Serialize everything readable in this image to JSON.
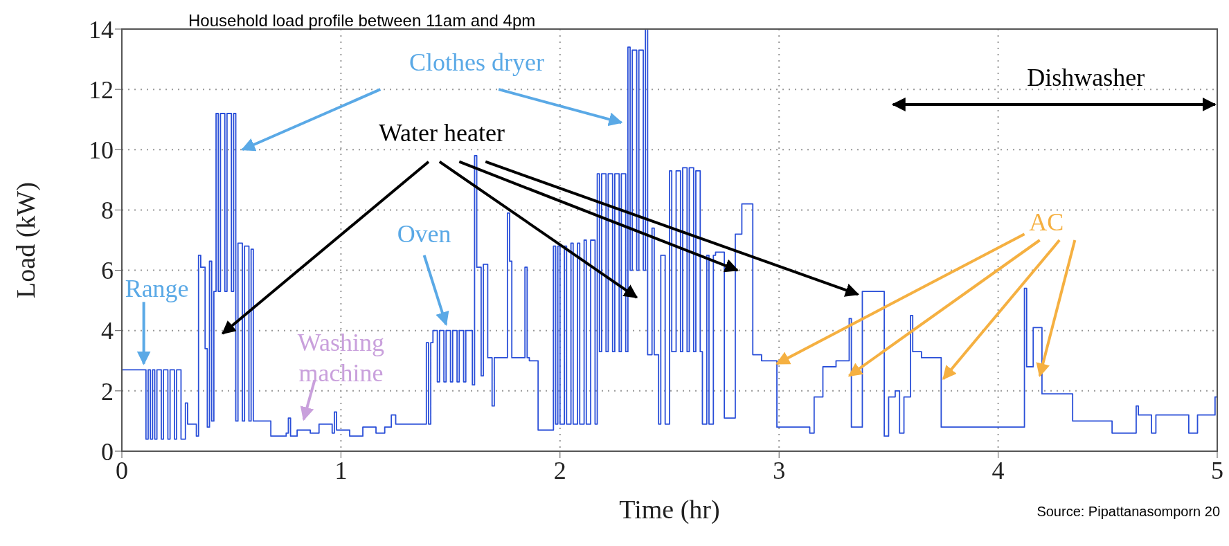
{
  "chart_data": {
    "type": "step",
    "title": "Household load profile between 11am and 4pm",
    "xlabel": "Time (hr)",
    "ylabel": "Load (kW)",
    "x": [
      0,
      0.11,
      0.12,
      0.13,
      0.14,
      0.15,
      0.16,
      0.18,
      0.19,
      0.21,
      0.22,
      0.24,
      0.25,
      0.27,
      0.29,
      0.3,
      0.34,
      0.35,
      0.36,
      0.38,
      0.39,
      0.4,
      0.41,
      0.42,
      0.43,
      0.44,
      0.45,
      0.47,
      0.48,
      0.5,
      0.51,
      0.52,
      0.53,
      0.55,
      0.56,
      0.58,
      0.59,
      0.6,
      0.68,
      0.75,
      0.76,
      0.77,
      0.8,
      0.86,
      0.9,
      0.96,
      0.97,
      0.98,
      1.04,
      1.1,
      1.16,
      1.2,
      1.23,
      1.25,
      1.39,
      1.4,
      1.41,
      1.42,
      1.44,
      1.45,
      1.47,
      1.48,
      1.5,
      1.51,
      1.53,
      1.54,
      1.56,
      1.57,
      1.6,
      1.61,
      1.62,
      1.64,
      1.65,
      1.67,
      1.69,
      1.7,
      1.76,
      1.77,
      1.78,
      1.84,
      1.85,
      1.86,
      1.9,
      1.97,
      1.98,
      1.99,
      2.0,
      2.02,
      2.03,
      2.05,
      2.06,
      2.08,
      2.09,
      2.11,
      2.12,
      2.14,
      2.16,
      2.17,
      2.18,
      2.19,
      2.21,
      2.22,
      2.24,
      2.25,
      2.27,
      2.28,
      2.3,
      2.31,
      2.32,
      2.33,
      2.35,
      2.36,
      2.38,
      2.39,
      2.4,
      2.42,
      2.43,
      2.45,
      2.46,
      2.48,
      2.5,
      2.51,
      2.53,
      2.55,
      2.56,
      2.58,
      2.59,
      2.61,
      2.62,
      2.64,
      2.65,
      2.67,
      2.68,
      2.7,
      2.71,
      2.75,
      2.8,
      2.83,
      2.88,
      2.92,
      2.99,
      3.14,
      3.16,
      3.2,
      3.26,
      3.32,
      3.33,
      3.38,
      3.48,
      3.5,
      3.53,
      3.55,
      3.57,
      3.6,
      3.61,
      3.65,
      3.74,
      4.12,
      4.13,
      4.16,
      4.2,
      4.34,
      4.52,
      4.63,
      4.64,
      4.7,
      4.72,
      4.87,
      4.91,
      4.99,
      5.0
    ],
    "values": [
      2.7,
      0.4,
      2.7,
      0.4,
      2.7,
      0.4,
      2.7,
      0.4,
      2.7,
      0.4,
      2.7,
      0.4,
      2.7,
      0.4,
      1.6,
      0.9,
      0.5,
      6.5,
      6.1,
      3.4,
      0.8,
      6.3,
      1.0,
      5.3,
      11.2,
      5.3,
      11.2,
      5.3,
      11.2,
      5.3,
      11.2,
      1.0,
      6.9,
      1.0,
      6.8,
      1.0,
      6.7,
      1.0,
      0.5,
      0.6,
      1.1,
      0.5,
      0.7,
      0.6,
      0.9,
      0.6,
      1.3,
      0.7,
      0.5,
      0.8,
      0.6,
      0.8,
      1.2,
      0.9,
      3.6,
      0.9,
      3.6,
      4.0,
      2.3,
      4.0,
      2.3,
      4.0,
      2.3,
      4.0,
      2.3,
      4.0,
      2.3,
      4.0,
      2.2,
      9.8,
      6.1,
      2.5,
      6.2,
      3.1,
      1.5,
      3.1,
      7.9,
      6.3,
      3.1,
      6.1,
      3.1,
      3.0,
      0.7,
      6.8,
      0.9,
      6.8,
      0.9,
      6.8,
      0.9,
      6.9,
      0.9,
      6.9,
      0.9,
      7.0,
      0.9,
      7.0,
      0.9,
      9.2,
      3.3,
      9.2,
      3.3,
      9.2,
      3.3,
      9.2,
      3.3,
      9.2,
      3.3,
      13.4,
      6.0,
      13.3,
      6.0,
      13.3,
      6.0,
      14.0,
      3.2,
      7.4,
      3.2,
      0.9,
      6.5,
      0.9,
      9.3,
      3.3,
      9.3,
      3.3,
      9.4,
      3.3,
      9.4,
      3.3,
      9.3,
      3.3,
      0.9,
      6.5,
      0.9,
      6.5,
      6.6,
      1.1,
      7.2,
      8.2,
      3.2,
      3.0,
      0.8,
      0.6,
      1.8,
      2.8,
      3.0,
      4.4,
      0.8,
      5.3,
      0.5,
      1.8,
      2.0,
      0.6,
      1.8,
      4.5,
      3.3,
      3.1,
      0.8,
      5.4,
      2.8,
      4.1,
      1.9,
      1.0,
      0.6,
      1.5,
      1.2,
      0.6,
      1.2,
      0.6,
      1.2,
      1.8,
      1.8
    ],
    "color": "#2a4fd8",
    "xlim": [
      0,
      5
    ],
    "xticks": [
      0,
      1,
      2,
      3,
      4,
      5
    ],
    "ylim": [
      0,
      14
    ],
    "yticks": [
      0,
      2,
      4,
      6,
      8,
      10,
      12,
      14
    ],
    "grid": true,
    "marker": "none",
    "line_style": "solid",
    "annotations": [
      "Clothes dryer",
      {
        "text": "Water heater",
        "x": 2.81,
        "y": 6.0
      },
      "Range",
      "Oven",
      "Washing machine",
      {
        "text": "AC",
        "x": 2.99,
        "y": 2.9
      },
      "Dishwasher",
      "Source: Pipattanasomporn 20"
    ]
  }
}
